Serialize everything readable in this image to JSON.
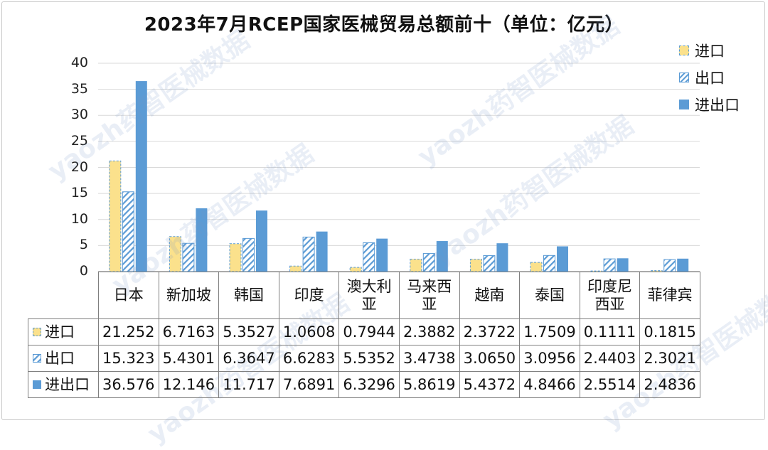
{
  "chart_data": {
    "type": "bar",
    "title": "2023年7月RCEP国家医械贸易总额前十（单位：亿元）",
    "categories": [
      "日本",
      "新加坡",
      "韩国",
      "印度",
      "澳大利亚",
      "马来西亚",
      "越南",
      "泰国",
      "印度尼西亚",
      "菲律宾"
    ],
    "category_labels": [
      [
        "日本"
      ],
      [
        "新加坡"
      ],
      [
        "韩国"
      ],
      [
        "印度"
      ],
      [
        "澳大利",
        "亚"
      ],
      [
        "马来西",
        "亚"
      ],
      [
        "越南"
      ],
      [
        "泰国"
      ],
      [
        "印度尼",
        "西亚"
      ],
      [
        "菲律宾"
      ]
    ],
    "series": [
      {
        "name": "进口",
        "values": [
          21.252,
          6.7163,
          5.3527,
          1.0608,
          0.7944,
          2.3882,
          2.3722,
          1.7509,
          0.1111,
          0.1815
        ],
        "labels": [
          "21.252",
          "6.7163",
          "5.3527",
          "1.0608",
          "0.7944",
          "2.3882",
          "2.3722",
          "1.7509",
          "0.1111",
          "0.1815"
        ]
      },
      {
        "name": "出口",
        "values": [
          15.323,
          5.4301,
          6.3647,
          6.6283,
          5.5352,
          3.4738,
          3.065,
          3.0956,
          2.4403,
          2.3021
        ],
        "labels": [
          "15.323",
          "5.4301",
          "6.3647",
          "6.6283",
          "5.5352",
          "3.4738",
          "3.0650",
          "3.0956",
          "2.4403",
          "2.3021"
        ]
      },
      {
        "name": "进出口",
        "values": [
          36.576,
          12.146,
          11.717,
          7.6891,
          6.3296,
          5.8619,
          5.4372,
          4.8466,
          2.5514,
          2.4836
        ],
        "labels": [
          "36.576",
          "12.146",
          "11.717",
          "7.6891",
          "6.3296",
          "5.8619",
          "5.4372",
          "4.8466",
          "2.5514",
          "2.4836"
        ]
      }
    ],
    "ylim": [
      0,
      40
    ],
    "yticks": [
      "0",
      "5",
      "10",
      "15",
      "20",
      "25",
      "30",
      "35",
      "40"
    ],
    "grid": true,
    "legend": "top-right",
    "data_table": true,
    "colors": {
      "进口": "#fbe18c",
      "出口": "#ffffff",
      "进出口": "#5b9bd5",
      "border": "#5b9bd5",
      "grid": "#d9d9d9"
    }
  },
  "watermark": "yaozh药智医械数据"
}
